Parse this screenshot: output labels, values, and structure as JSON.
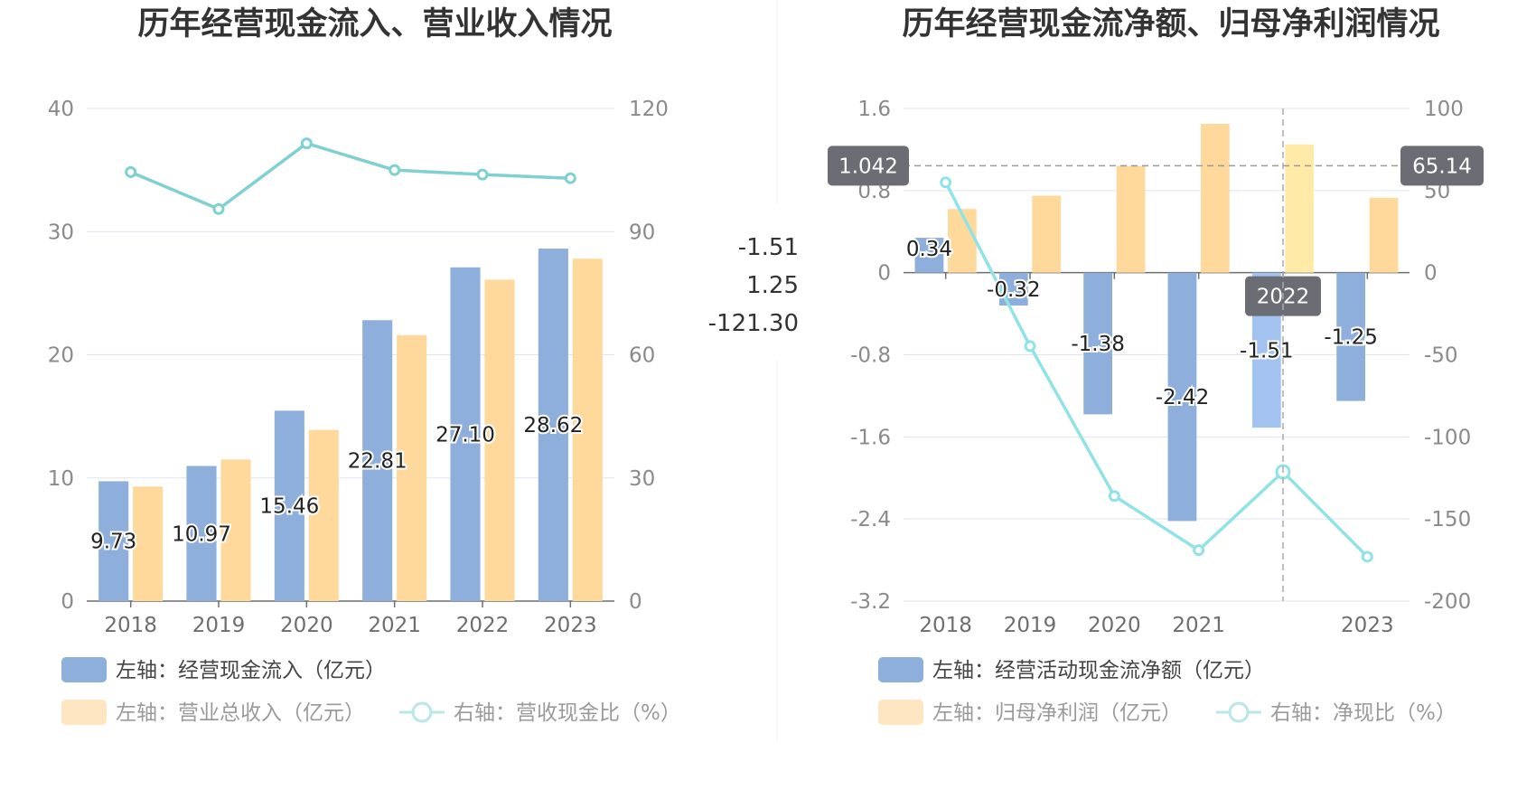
{
  "colors": {
    "bar_primary": "#8eaedb",
    "bar_secondary": "#ffd89c",
    "bar_primary_highlight": "#a3c2ef",
    "bar_secondary_highlight": "#ffeaa8",
    "line_left": "#7fd0d1",
    "line_right": "#8fe3e4",
    "grid": "#dfe3ef",
    "axis": "#6e6e6e",
    "pointer_bg": "#6a6d74",
    "divider": "#eeeeee"
  },
  "tooltip": {
    "lines": [
      "-1.51",
      "1.25",
      "-121.30"
    ]
  },
  "chart_data": [
    {
      "type": "bar",
      "title": "历年经营现金流入、营业收入情况",
      "categories": [
        "2018",
        "2019",
        "2020",
        "2021",
        "2022",
        "2023"
      ],
      "y_left": {
        "ticks": [
          "0",
          "10",
          "20",
          "30",
          "40"
        ],
        "ylim": [
          0,
          40
        ]
      },
      "y_right": {
        "ticks": [
          "0",
          "30",
          "60",
          "90",
          "120"
        ],
        "ylim": [
          0,
          120
        ]
      },
      "series": [
        {
          "name": "左轴：经营现金流入（亿元）",
          "type": "bar",
          "axis": "left",
          "values": [
            9.73,
            10.97,
            15.46,
            22.81,
            27.1,
            28.62
          ],
          "labels": [
            "9.73",
            "10.97",
            "15.46",
            "22.81",
            "27.10",
            "28.62"
          ]
        },
        {
          "name": "左轴：营业总收入（亿元）",
          "type": "bar",
          "axis": "left",
          "values": [
            9.3,
            11.5,
            13.9,
            21.6,
            26.1,
            27.8
          ]
        },
        {
          "name": "右轴：营收现金比（%）",
          "type": "line",
          "axis": "right",
          "values": [
            104.5,
            95.5,
            111.5,
            105.0,
            103.9,
            103.0
          ]
        }
      ],
      "legend_position": "bottom",
      "grid": true
    },
    {
      "type": "bar",
      "title": "历年经营现金流净额、归母净利润情况",
      "categories": [
        "2018",
        "2019",
        "2020",
        "2021",
        "2022",
        "2023"
      ],
      "highlighted_category": "2022",
      "y_left": {
        "ticks": [
          "-3.2",
          "-2.4",
          "-1.6",
          "-0.8",
          "0",
          "0.8",
          "1.6"
        ],
        "ylim": [
          -3.2,
          1.6
        ]
      },
      "y_right": {
        "ticks": [
          "-200",
          "-150",
          "-100",
          "-50",
          "0",
          "50",
          "100"
        ],
        "ylim": [
          -200,
          100
        ]
      },
      "pointer": {
        "left_value": "1.042",
        "right_value": "65.14",
        "category": "2022"
      },
      "series": [
        {
          "name": "左轴：经营活动现金流净额（亿元）",
          "type": "bar",
          "axis": "left",
          "values": [
            0.34,
            -0.32,
            -1.38,
            -2.42,
            -1.51,
            -1.25
          ],
          "labels": [
            "0.34",
            "-0.32",
            "-1.38",
            "-2.42",
            "-1.51",
            "-1.25"
          ]
        },
        {
          "name": "左轴：归母净利润（亿元）",
          "type": "bar",
          "axis": "left",
          "values": [
            0.62,
            0.75,
            1.04,
            1.45,
            1.25,
            0.73
          ]
        },
        {
          "name": "右轴：净现比（%）",
          "type": "line",
          "axis": "right",
          "values": [
            55.0,
            -44.7,
            -136.0,
            -169.0,
            -121.3,
            -173.0
          ]
        }
      ],
      "legend_position": "bottom",
      "grid": true
    }
  ]
}
